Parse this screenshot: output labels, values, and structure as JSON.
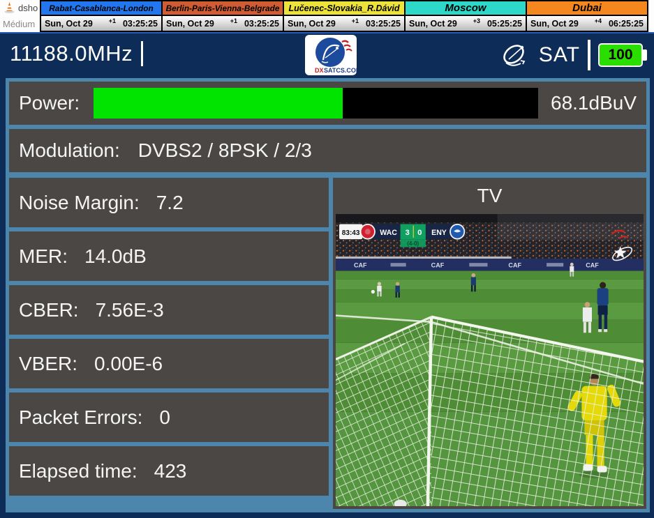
{
  "taskbar": {
    "window_title_fragment": "dsho",
    "menu_item": "Médium"
  },
  "world_clocks": [
    {
      "label": "Rabat-Casablanca-London",
      "bg": "#2277ee",
      "date": "Sun, Oct 29",
      "offset": "+1",
      "time": "03:25:25"
    },
    {
      "label": "Berlin-Paris-Vienna-Belgrade",
      "bg": "#d05c34",
      "date": "Sun, Oct 29",
      "offset": "+1",
      "time": "03:25:25"
    },
    {
      "label": "Lučenec-Slovakia_R.Dávid",
      "bg": "#ece23a",
      "date": "Sun, Oct 29",
      "offset": "+1",
      "time": "03:25:25"
    },
    {
      "label": "Moscow",
      "bg": "#2ed8c8",
      "date": "Sun, Oct 29",
      "offset": "+3",
      "time": "05:25:25"
    },
    {
      "label": "Dubai",
      "bg": "#f5871f",
      "date": "Sun, Oct 29",
      "offset": "+4",
      "time": "06:25:25"
    }
  ],
  "header": {
    "frequency": "11188.0MHz",
    "logo_text_dx": "DX",
    "logo_text_rest": "SATCS.COM",
    "sat_label": "SAT",
    "battery_level": "100"
  },
  "measurements": {
    "power": {
      "label": "Power:",
      "value": "68.1dBuV",
      "bar_percent": 56
    },
    "modulation": {
      "label": "Modulation:",
      "value": "DVBS2 / 8PSK / 2/3"
    },
    "rows": [
      {
        "label": "Noise Margin:",
        "value": "7.2"
      },
      {
        "label": "MER:",
        "value": "14.0dB"
      },
      {
        "label": "CBER:",
        "value": "7.56E-3"
      },
      {
        "label": "VBER:",
        "value": "0.00E-6"
      },
      {
        "label": "Packet Errors:",
        "value": "0"
      },
      {
        "label": "Elapsed time:",
        "value": "423"
      }
    ]
  },
  "tv": {
    "title": "TV",
    "ad_text": "CAF",
    "scoreboard": {
      "clock": "83:43",
      "home": "WAC",
      "home_score": "3",
      "away_score": "0",
      "away": "ENY",
      "aggregate": "(4-0)"
    }
  },
  "colors": {
    "window_navy": "#0d2c58",
    "content_steel_blue": "#4c86ad",
    "panel_gray": "#4b4744",
    "power_bar_green": "#00e400",
    "battery_green": "#2ade00",
    "score_green": "#0fa05f",
    "scoreboard_navy": "#182544"
  }
}
